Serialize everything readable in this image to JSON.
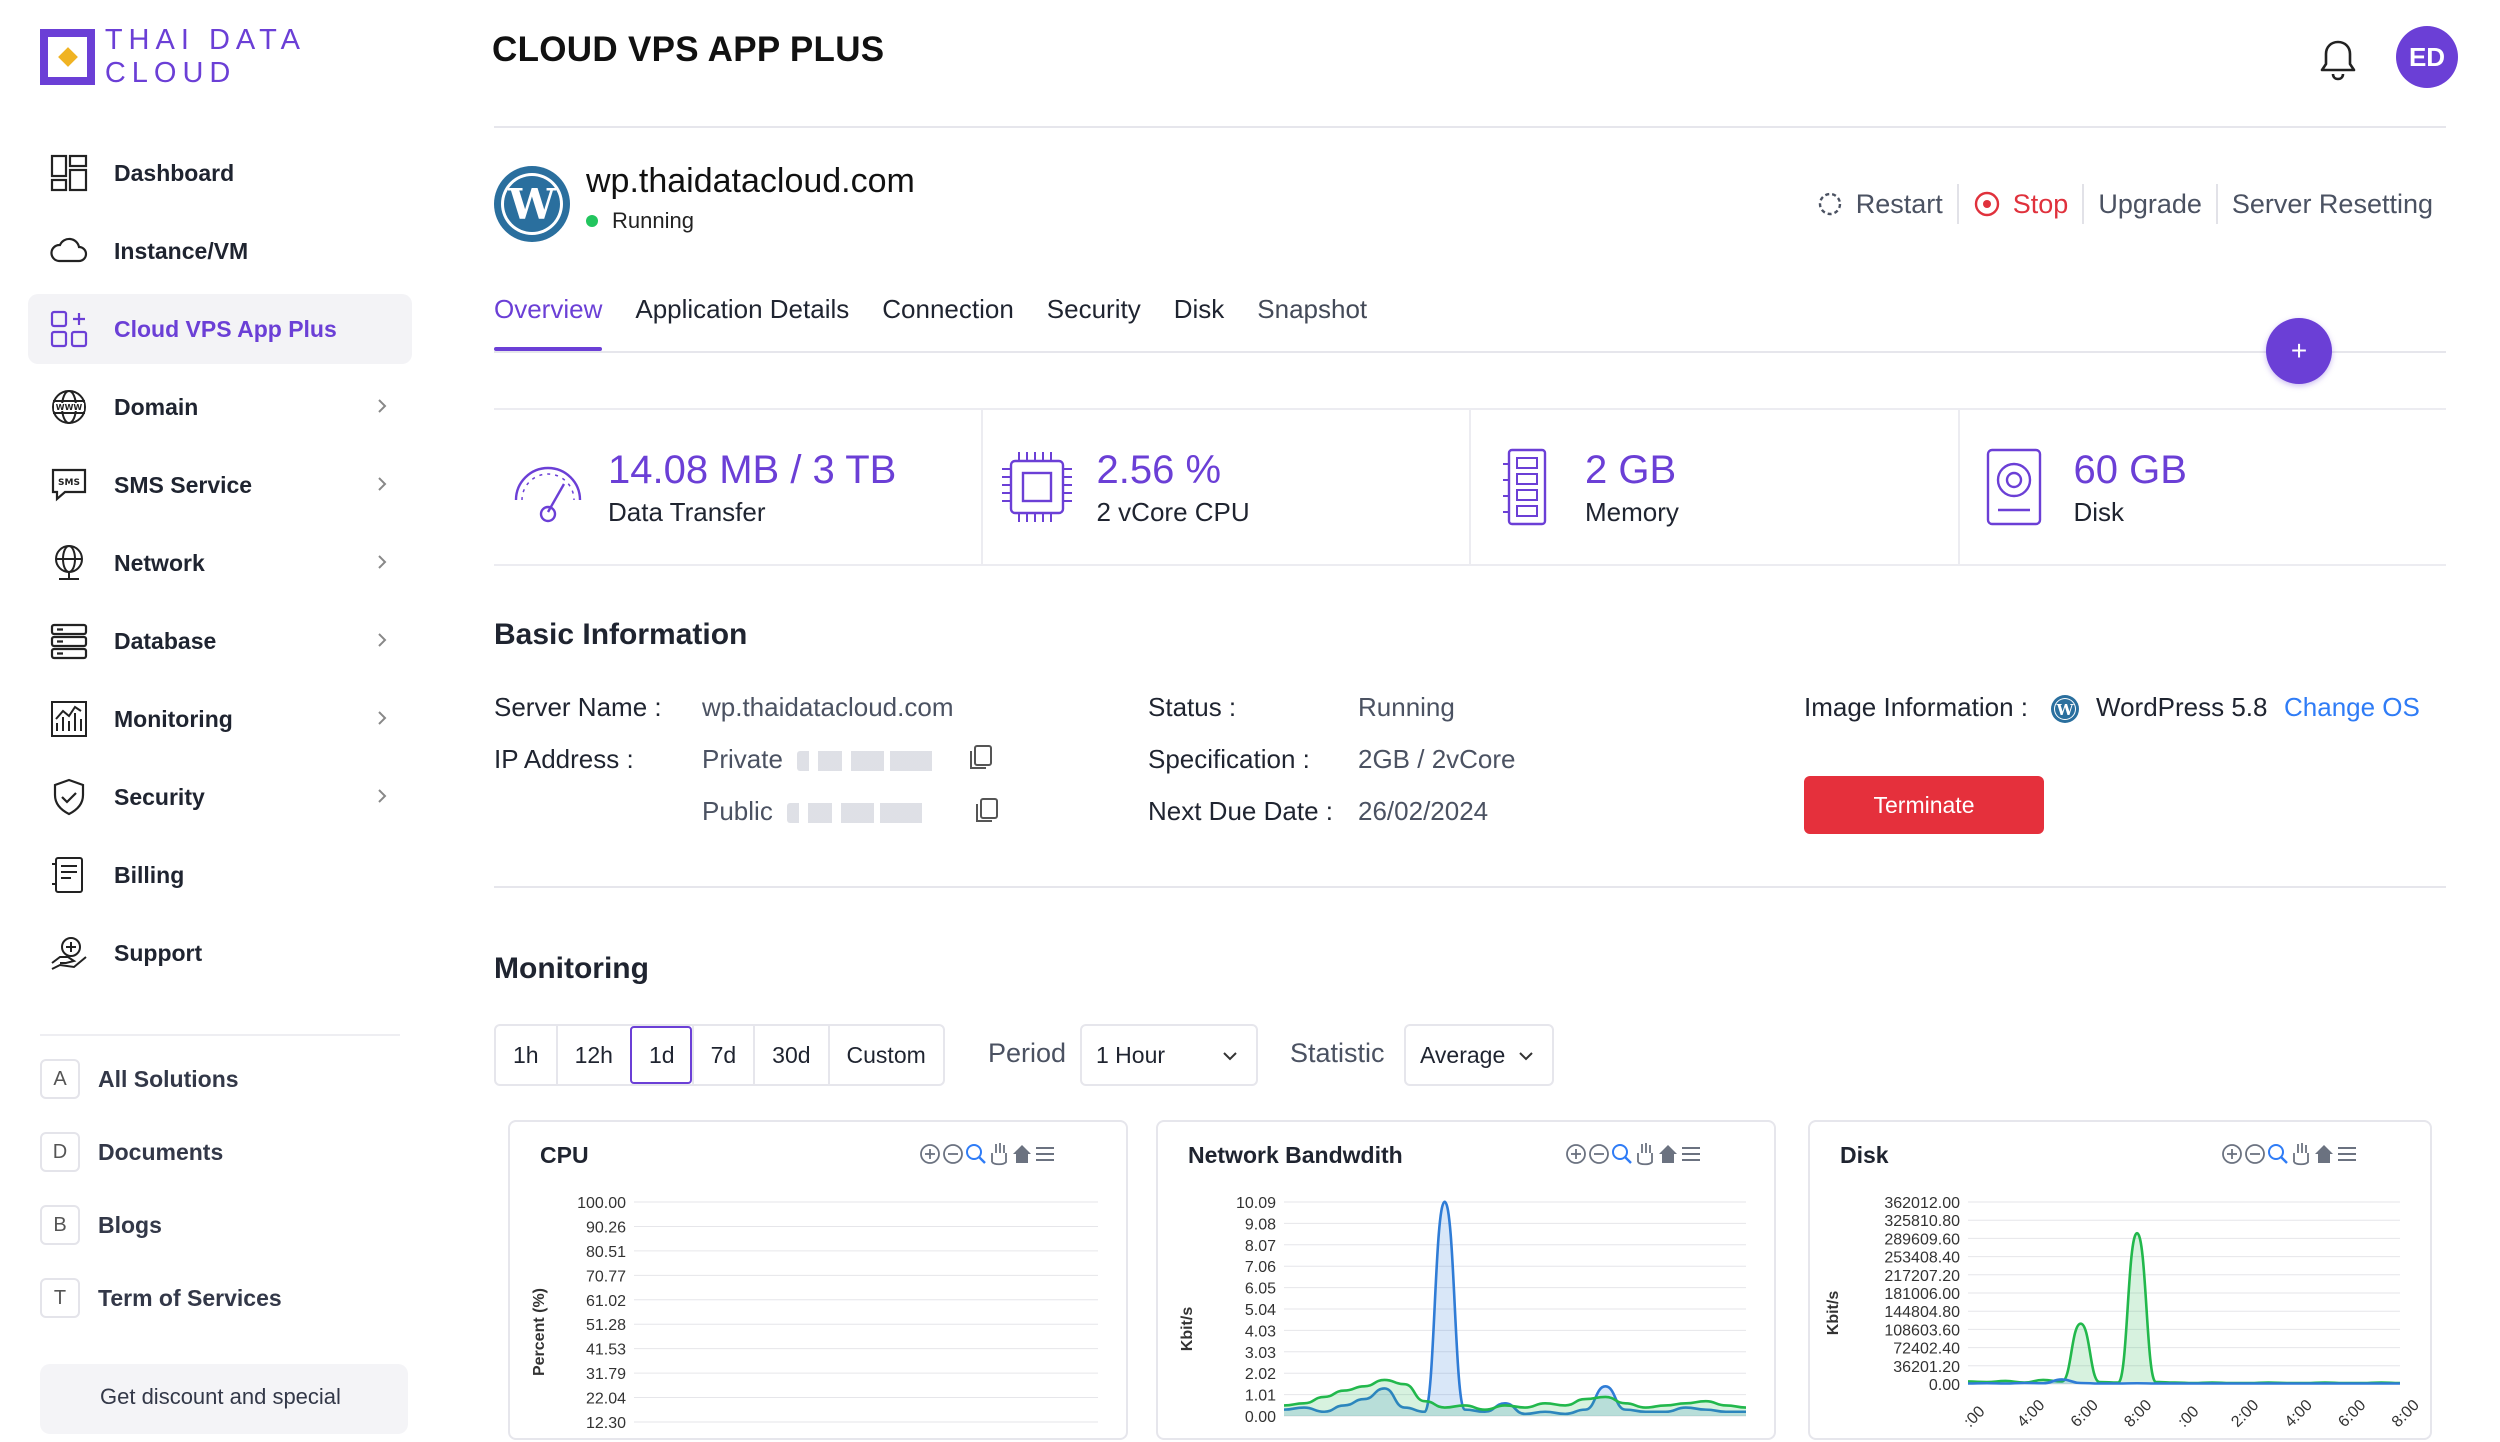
{
  "brand": {
    "name": "THAI DATA CLOUD",
    "accent": "#6b3fd6"
  },
  "sidebar": {
    "items": [
      {
        "label": "Dashboard",
        "icon": "dashboard-icon",
        "active": false,
        "chevron": false
      },
      {
        "label": "Instance/VM",
        "icon": "cloud-icon",
        "active": false,
        "chevron": false
      },
      {
        "label": "Cloud VPS App Plus",
        "icon": "apps-plus-icon",
        "active": true,
        "chevron": false
      },
      {
        "label": "Domain",
        "icon": "www-globe-icon",
        "active": false,
        "chevron": true
      },
      {
        "label": "SMS Service",
        "icon": "sms-icon",
        "active": false,
        "chevron": true
      },
      {
        "label": "Network",
        "icon": "network-globe-icon",
        "active": false,
        "chevron": true
      },
      {
        "label": "Database",
        "icon": "database-icon",
        "active": false,
        "chevron": true
      },
      {
        "label": "Monitoring",
        "icon": "monitoring-chart-icon",
        "active": false,
        "chevron": true
      },
      {
        "label": "Security",
        "icon": "shield-icon",
        "active": false,
        "chevron": true
      },
      {
        "label": "Billing",
        "icon": "billing-icon",
        "active": false,
        "chevron": false
      },
      {
        "label": "Support",
        "icon": "support-icon",
        "active": false,
        "chevron": false
      }
    ],
    "solutions": [
      {
        "letter": "A",
        "label": "All Solutions"
      },
      {
        "letter": "D",
        "label": "Documents"
      },
      {
        "letter": "B",
        "label": "Blogs"
      },
      {
        "letter": "T",
        "label": "Term of Services"
      }
    ],
    "promo": "Get discount and special"
  },
  "header": {
    "title": "CLOUD VPS APP PLUS",
    "avatar_initials": "ED"
  },
  "server": {
    "name": "wp.thaidatacloud.com",
    "status": "Running",
    "actions": {
      "restart": "Restart",
      "stop": "Stop",
      "upgrade": "Upgrade",
      "reset": "Server Resetting"
    }
  },
  "tabs": [
    "Overview",
    "Application Details",
    "Connection",
    "Security",
    "Disk",
    "Snapshot"
  ],
  "fab_label": "+",
  "stats": [
    {
      "value": "14.08 MB / 3 TB",
      "label": "Data Transfer",
      "icon": "gauge-icon"
    },
    {
      "value": "2.56 %",
      "label": "2 vCore CPU",
      "icon": "cpu-chip-icon"
    },
    {
      "value": "2 GB",
      "label": "Memory",
      "icon": "memory-icon"
    },
    {
      "value": "60 GB",
      "label": "Disk",
      "icon": "disk-icon"
    }
  ],
  "basic": {
    "title": "Basic Information",
    "server_name_label": "Server Name :",
    "server_name_value": "wp.thaidatacloud.com",
    "ip_label": "IP Address :",
    "private_label": "Private",
    "public_label": "Public",
    "status_label": "Status :",
    "status_value": "Running",
    "spec_label": "Specification :",
    "spec_value": "2GB / 2vCore",
    "due_label": "Next Due Date :",
    "due_value": "26/02/2024",
    "image_label": "Image Information :",
    "image_value": "WordPress 5.8",
    "change_os": "Change OS",
    "terminate": "Terminate"
  },
  "monitoring": {
    "title": "Monitoring",
    "ranges": [
      "1h",
      "12h",
      "1d",
      "7d",
      "30d",
      "Custom"
    ],
    "active_range": "1d",
    "period_label": "Period",
    "period_value": "1 Hour",
    "statistic_label": "Statistic",
    "statistic_value": "Average"
  },
  "chart_data": [
    {
      "type": "line",
      "title": "CPU",
      "ylabel": "Percent (%)",
      "yticks": [
        "100.00",
        "90.26",
        "80.51",
        "70.77",
        "61.02",
        "51.28",
        "41.53",
        "31.79",
        "22.04",
        "12.30"
      ],
      "ylim": [
        12.3,
        100.0
      ],
      "series": []
    },
    {
      "type": "area",
      "title": "Network Bandwdith",
      "ylabel": "Kbit/s",
      "yticks": [
        "10.09",
        "9.08",
        "8.07",
        "7.06",
        "6.05",
        "5.04",
        "4.03",
        "3.03",
        "2.02",
        "1.01",
        "0.00"
      ],
      "ylim": [
        0,
        10.09
      ],
      "series": [
        {
          "color": "#2f7cd6",
          "values": [
            0.3,
            0.4,
            0.2,
            0.5,
            0.8,
            1.3,
            0.4,
            0.2,
            10.1,
            0.3,
            0.2,
            0.6,
            0.1,
            0.2,
            0.1,
            0.3,
            1.4,
            0.3,
            0.2,
            0.2,
            0.4,
            0.3,
            0.2,
            0.2
          ]
        },
        {
          "color": "#22b84c",
          "values": [
            0.5,
            0.6,
            0.9,
            1.2,
            1.4,
            1.7,
            1.5,
            0.7,
            0.4,
            0.5,
            0.3,
            0.5,
            0.4,
            0.6,
            0.5,
            0.8,
            0.9,
            0.6,
            0.4,
            0.5,
            0.6,
            0.7,
            0.5,
            0.4
          ]
        }
      ]
    },
    {
      "type": "area",
      "title": "Disk",
      "ylabel": "Kbit/s",
      "yticks": [
        "362012.00",
        "325810.80",
        "289609.60",
        "253408.40",
        "217207.20",
        "181006.00",
        "144804.80",
        "108603.60",
        "72402.40",
        "36201.20",
        "0.00"
      ],
      "ylim": [
        0,
        362012.0
      ],
      "xticks": [
        ":00",
        "4:00",
        "6:00",
        "8:00",
        ":00",
        "2:00",
        "4:00",
        "6:00",
        "8:00"
      ],
      "series": [
        {
          "color": "#22b84c",
          "values": [
            5000,
            4000,
            6000,
            3000,
            8000,
            5000,
            120000,
            4000,
            3000,
            300000,
            4000,
            3000,
            2000,
            3000,
            2000,
            2000,
            3000,
            2000,
            2000,
            3000,
            2000,
            2000,
            3000,
            2000
          ]
        },
        {
          "color": "#2f7cd6",
          "values": [
            1000,
            1500,
            1000,
            2000,
            1500,
            9000,
            2000,
            1000,
            1000,
            1500,
            1000,
            1000,
            1000,
            1000,
            1000,
            1000,
            1000,
            1000,
            1000,
            1000,
            1000,
            1000,
            1000,
            1000
          ]
        }
      ]
    }
  ]
}
